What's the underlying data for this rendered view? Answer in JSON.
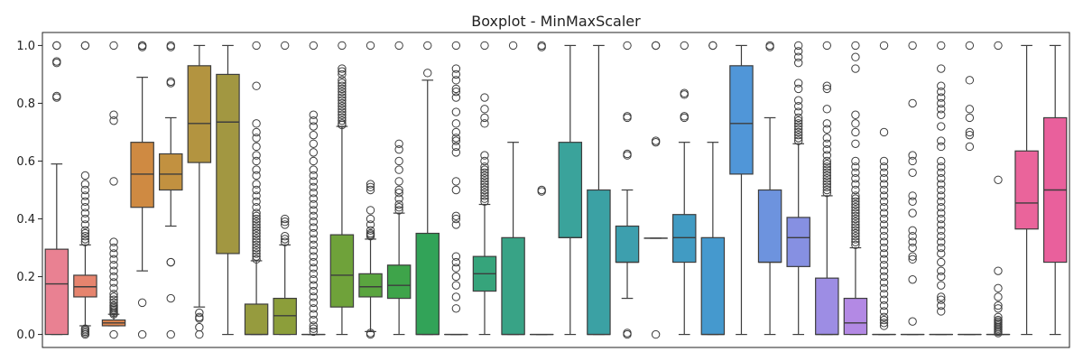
{
  "chart_data": {
    "type": "box",
    "title": "Boxplot - MinMaxScaler",
    "xlabel": "",
    "ylabel": "",
    "ylim": [
      -0.045,
      1.045
    ],
    "yticks": [
      0.0,
      0.2,
      0.4,
      0.6,
      0.8,
      1.0
    ],
    "ytick_labels": [
      "0.0",
      "0.2",
      "0.4",
      "0.6",
      "0.8",
      "1.0"
    ],
    "grid": false,
    "legend": "none",
    "series": [
      {
        "color": "#e98192",
        "q1": 0.0,
        "median": 0.175,
        "q3": 0.295,
        "whisker_low": 0.0,
        "whisker_high": 0.59,
        "outliers": [
          0.82,
          0.825,
          0.94,
          0.945,
          1.0,
          1.0
        ]
      },
      {
        "color": "#e6846e",
        "q1": 0.13,
        "median": 0.165,
        "q3": 0.205,
        "whisker_low": 0.03,
        "whisker_high": 0.31,
        "outliers": [
          0.0,
          0.005,
          0.01,
          0.015,
          0.02,
          0.32,
          0.33,
          0.34,
          0.35,
          0.36,
          0.38,
          0.4,
          0.42,
          0.44,
          0.46,
          0.48,
          0.5,
          0.52,
          0.55,
          1.0,
          1.0
        ]
      },
      {
        "color": "#e0864e",
        "q1": 0.03,
        "median": 0.04,
        "q3": 0.05,
        "whisker_low": 0.03,
        "whisker_high": 0.07,
        "outliers": [
          0.0,
          0.07,
          0.075,
          0.08,
          0.085,
          0.09,
          0.095,
          0.1,
          0.11,
          0.12,
          0.13,
          0.14,
          0.16,
          0.18,
          0.2,
          0.22,
          0.24,
          0.26,
          0.28,
          0.3,
          0.32,
          0.53,
          0.74,
          0.76,
          1.0
        ]
      },
      {
        "color": "#cf8a42",
        "q1": 0.44,
        "median": 0.555,
        "q3": 0.665,
        "whisker_low": 0.22,
        "whisker_high": 0.89,
        "outliers": [
          0.0,
          0.11,
          0.995,
          1.0,
          1.0
        ]
      },
      {
        "color": "#c29140",
        "q1": 0.5,
        "median": 0.555,
        "q3": 0.625,
        "whisker_low": 0.375,
        "whisker_high": 0.75,
        "outliers": [
          0.0,
          0.125,
          0.25,
          0.25,
          0.87,
          0.875,
          0.995,
          1.0
        ]
      },
      {
        "color": "#b39440",
        "q1": 0.595,
        "median": 0.73,
        "q3": 0.93,
        "whisker_low": 0.095,
        "whisker_high": 1.0,
        "outliers": [
          0.0,
          0.025,
          0.055,
          0.06,
          0.075
        ]
      },
      {
        "color": "#a29741",
        "q1": 0.28,
        "median": 0.735,
        "q3": 0.9,
        "whisker_low": 0.0,
        "whisker_high": 1.0,
        "outliers": []
      },
      {
        "color": "#969b3e",
        "q1": 0.0,
        "median": 0.0,
        "q3": 0.105,
        "whisker_low": 0.0,
        "whisker_high": 0.255,
        "outliers": [
          0.26,
          0.27,
          0.28,
          0.29,
          0.3,
          0.31,
          0.32,
          0.33,
          0.34,
          0.35,
          0.36,
          0.37,
          0.38,
          0.39,
          0.4,
          0.41,
          0.42,
          0.44,
          0.46,
          0.48,
          0.5,
          0.52,
          0.55,
          0.57,
          0.6,
          0.62,
          0.65,
          0.68,
          0.7,
          0.73,
          0.86,
          1.0
        ]
      },
      {
        "color": "#8c9e3a",
        "q1": 0.0,
        "median": 0.065,
        "q3": 0.125,
        "whisker_low": 0.0,
        "whisker_high": 0.31,
        "outliers": [
          0.32,
          0.33,
          0.34,
          0.38,
          0.39,
          0.4,
          1.0
        ]
      },
      {
        "color": "#7fa13a",
        "q1": 0.0,
        "median": 0.0,
        "q3": 0.0,
        "whisker_low": 0.0,
        "whisker_high": 0.0,
        "outliers": [
          0.01,
          0.02,
          0.03,
          0.05,
          0.07,
          0.09,
          0.11,
          0.13,
          0.15,
          0.17,
          0.19,
          0.21,
          0.23,
          0.25,
          0.27,
          0.29,
          0.31,
          0.33,
          0.35,
          0.37,
          0.39,
          0.41,
          0.43,
          0.45,
          0.47,
          0.49,
          0.51,
          0.53,
          0.55,
          0.57,
          0.6,
          0.63,
          0.66,
          0.69,
          0.72,
          0.74,
          0.76,
          1.0
        ]
      },
      {
        "color": "#6fa23a",
        "q1": 0.095,
        "median": 0.205,
        "q3": 0.345,
        "whisker_low": 0.0,
        "whisker_high": 0.72,
        "outliers": [
          0.725,
          0.73,
          0.74,
          0.75,
          0.76,
          0.77,
          0.78,
          0.79,
          0.8,
          0.81,
          0.82,
          0.83,
          0.84,
          0.85,
          0.86,
          0.87,
          0.88,
          0.9,
          0.91,
          0.92,
          1.0
        ]
      },
      {
        "color": "#5aa53f",
        "q1": 0.13,
        "median": 0.165,
        "q3": 0.21,
        "whisker_low": 0.01,
        "whisker_high": 0.33,
        "outliers": [
          0.0,
          0.005,
          0.34,
          0.345,
          0.35,
          0.36,
          0.38,
          0.4,
          0.43,
          0.5,
          0.51,
          0.52,
          1.0
        ]
      },
      {
        "color": "#3ea44a",
        "q1": 0.125,
        "median": 0.17,
        "q3": 0.24,
        "whisker_low": 0.0,
        "whisker_high": 0.42,
        "outliers": [
          0.43,
          0.44,
          0.45,
          0.47,
          0.49,
          0.5,
          0.53,
          0.57,
          0.6,
          0.64,
          0.66,
          1.0
        ]
      },
      {
        "color": "#32a358",
        "q1": 0.0,
        "median": 0.0,
        "q3": 0.35,
        "whisker_low": 0.0,
        "whisker_high": 0.88,
        "outliers": [
          0.905,
          1.0
        ]
      },
      {
        "color": "#35a56b",
        "q1": 0.0,
        "median": 0.0,
        "q3": 0.0,
        "whisker_low": 0.0,
        "whisker_high": 0.0,
        "outliers": [
          0.09,
          0.13,
          0.17,
          0.2,
          0.23,
          0.25,
          0.27,
          0.38,
          0.4,
          0.41,
          0.5,
          0.53,
          0.63,
          0.65,
          0.67,
          0.68,
          0.7,
          0.73,
          0.77,
          0.82,
          0.84,
          0.85,
          0.88,
          0.9,
          0.92,
          1.0
        ]
      },
      {
        "color": "#36a47b",
        "q1": 0.15,
        "median": 0.21,
        "q3": 0.27,
        "whisker_low": 0.0,
        "whisker_high": 0.45,
        "outliers": [
          0.46,
          0.47,
          0.48,
          0.49,
          0.5,
          0.51,
          0.52,
          0.53,
          0.54,
          0.55,
          0.56,
          0.57,
          0.58,
          0.6,
          0.62,
          0.73,
          0.75,
          0.78,
          0.82,
          1.0
        ]
      },
      {
        "color": "#38a386",
        "q1": 0.0,
        "median": 0.0,
        "q3": 0.335,
        "whisker_low": 0.0,
        "whisker_high": 0.665,
        "outliers": [
          1.0
        ]
      },
      {
        "color": "#39a391",
        "q1": 0.0,
        "median": 0.0,
        "q3": 0.0,
        "whisker_low": 0.0,
        "whisker_high": 0.0,
        "outliers": [
          0.495,
          0.5,
          0.995,
          1.0
        ]
      },
      {
        "color": "#3aa39b",
        "q1": 0.335,
        "median": 0.335,
        "q3": 0.665,
        "whisker_low": 0.0,
        "whisker_high": 1.0,
        "outliers": []
      },
      {
        "color": "#3ba1a4",
        "q1": 0.0,
        "median": 0.0,
        "q3": 0.5,
        "whisker_low": 0.0,
        "whisker_high": 1.0,
        "outliers": []
      },
      {
        "color": "#3d9fae",
        "q1": 0.25,
        "median": 0.25,
        "q3": 0.375,
        "whisker_low": 0.125,
        "whisker_high": 0.5,
        "outliers": [
          0.0,
          0.005,
          0.62,
          0.625,
          0.75,
          0.755,
          1.0
        ]
      },
      {
        "color": "#3f9db9",
        "q1": 0.333,
        "median": 0.333,
        "q3": 0.333,
        "whisker_low": 0.333,
        "whisker_high": 0.333,
        "outliers": [
          0.0,
          0.665,
          0.67,
          1.0,
          1.0
        ]
      },
      {
        "color": "#419bc3",
        "q1": 0.25,
        "median": 0.335,
        "q3": 0.415,
        "whisker_low": 0.0,
        "whisker_high": 0.665,
        "outliers": [
          0.75,
          0.755,
          0.83,
          0.835,
          1.0
        ]
      },
      {
        "color": "#4599ce",
        "q1": 0.0,
        "median": 0.0,
        "q3": 0.335,
        "whisker_low": 0.0,
        "whisker_high": 0.665,
        "outliers": [
          1.0,
          1.0
        ]
      },
      {
        "color": "#5096d8",
        "q1": 0.555,
        "median": 0.73,
        "q3": 0.93,
        "whisker_low": 0.0,
        "whisker_high": 1.0,
        "outliers": []
      },
      {
        "color": "#6d93de",
        "q1": 0.25,
        "median": 0.25,
        "q3": 0.5,
        "whisker_low": 0.0,
        "whisker_high": 0.75,
        "outliers": [
          0.995,
          1.0
        ]
      },
      {
        "color": "#8690e2",
        "q1": 0.235,
        "median": 0.335,
        "q3": 0.405,
        "whisker_low": 0.0,
        "whisker_high": 0.66,
        "outliers": [
          0.67,
          0.68,
          0.69,
          0.7,
          0.71,
          0.72,
          0.73,
          0.74,
          0.75,
          0.77,
          0.79,
          0.81,
          0.85,
          0.87,
          0.94,
          0.96,
          0.98,
          1.0
        ]
      },
      {
        "color": "#9d8de4",
        "q1": 0.0,
        "median": 0.0,
        "q3": 0.195,
        "whisker_low": 0.0,
        "whisker_high": 0.48,
        "outliers": [
          0.49,
          0.5,
          0.51,
          0.52,
          0.53,
          0.54,
          0.55,
          0.56,
          0.57,
          0.58,
          0.59,
          0.6,
          0.62,
          0.64,
          0.66,
          0.68,
          0.71,
          0.73,
          0.78,
          0.85,
          0.86,
          1.0
        ]
      },
      {
        "color": "#b389e4",
        "q1": 0.0,
        "median": 0.04,
        "q3": 0.125,
        "whisker_low": 0.0,
        "whisker_high": 0.3,
        "outliers": [
          0.31,
          0.32,
          0.33,
          0.34,
          0.35,
          0.36,
          0.37,
          0.38,
          0.39,
          0.4,
          0.41,
          0.42,
          0.43,
          0.44,
          0.45,
          0.46,
          0.47,
          0.48,
          0.5,
          0.52,
          0.54,
          0.56,
          0.58,
          0.6,
          0.66,
          0.7,
          0.73,
          0.76,
          0.92,
          0.96,
          1.0
        ]
      },
      {
        "color": "#c987e2",
        "q1": 0.0,
        "median": 0.0,
        "q3": 0.0,
        "whisker_low": 0.0,
        "whisker_high": 0.0,
        "outliers": [
          0.03,
          0.04,
          0.05,
          0.06,
          0.08,
          0.1,
          0.12,
          0.14,
          0.16,
          0.18,
          0.2,
          0.22,
          0.24,
          0.26,
          0.28,
          0.3,
          0.32,
          0.34,
          0.36,
          0.38,
          0.4,
          0.42,
          0.44,
          0.46,
          0.48,
          0.5,
          0.52,
          0.54,
          0.56,
          0.58,
          0.6,
          0.7,
          1.0
        ]
      },
      {
        "color": "#db84d5",
        "q1": 0.0,
        "median": 0.0,
        "q3": 0.0,
        "whisker_low": 0.0,
        "whisker_high": 0.0,
        "outliers": [
          0.045,
          0.19,
          0.26,
          0.27,
          0.3,
          0.32,
          0.34,
          0.36,
          0.42,
          0.46,
          0.48,
          0.56,
          0.6,
          0.62,
          0.8,
          1.0
        ]
      },
      {
        "color": "#e383c5",
        "q1": 0.0,
        "median": 0.0,
        "q3": 0.0,
        "whisker_low": 0.0,
        "whisker_high": 0.0,
        "outliers": [
          0.08,
          0.1,
          0.12,
          0.13,
          0.17,
          0.2,
          0.22,
          0.25,
          0.28,
          0.3,
          0.32,
          0.34,
          0.36,
          0.38,
          0.4,
          0.42,
          0.44,
          0.46,
          0.48,
          0.5,
          0.52,
          0.54,
          0.56,
          0.58,
          0.6,
          0.65,
          0.67,
          0.72,
          0.76,
          0.78,
          0.8,
          0.82,
          0.84,
          0.86,
          0.92,
          1.0
        ]
      },
      {
        "color": "#e783b5",
        "q1": 0.0,
        "median": 0.0,
        "q3": 0.0,
        "whisker_low": 0.0,
        "whisker_high": 0.0,
        "outliers": [
          0.65,
          0.69,
          0.7,
          0.75,
          0.78,
          0.88,
          1.0
        ]
      },
      {
        "color": "#e983a6",
        "q1": 0.0,
        "median": 0.0,
        "q3": 0.0,
        "whisker_low": 0.0,
        "whisker_high": 0.0,
        "outliers": [
          0.005,
          0.01,
          0.015,
          0.02,
          0.025,
          0.03,
          0.035,
          0.04,
          0.045,
          0.05,
          0.06,
          0.09,
          0.1,
          0.13,
          0.16,
          0.22,
          0.535,
          1.0
        ]
      },
      {
        "color": "#ea649b",
        "q1": 0.365,
        "median": 0.455,
        "q3": 0.635,
        "whisker_low": 0.0,
        "whisker_high": 1.0,
        "outliers": []
      },
      {
        "color": "#e9609c",
        "q1": 0.25,
        "median": 0.5,
        "q3": 0.75,
        "whisker_low": 0.0,
        "whisker_high": 1.0,
        "outliers": []
      }
    ]
  }
}
